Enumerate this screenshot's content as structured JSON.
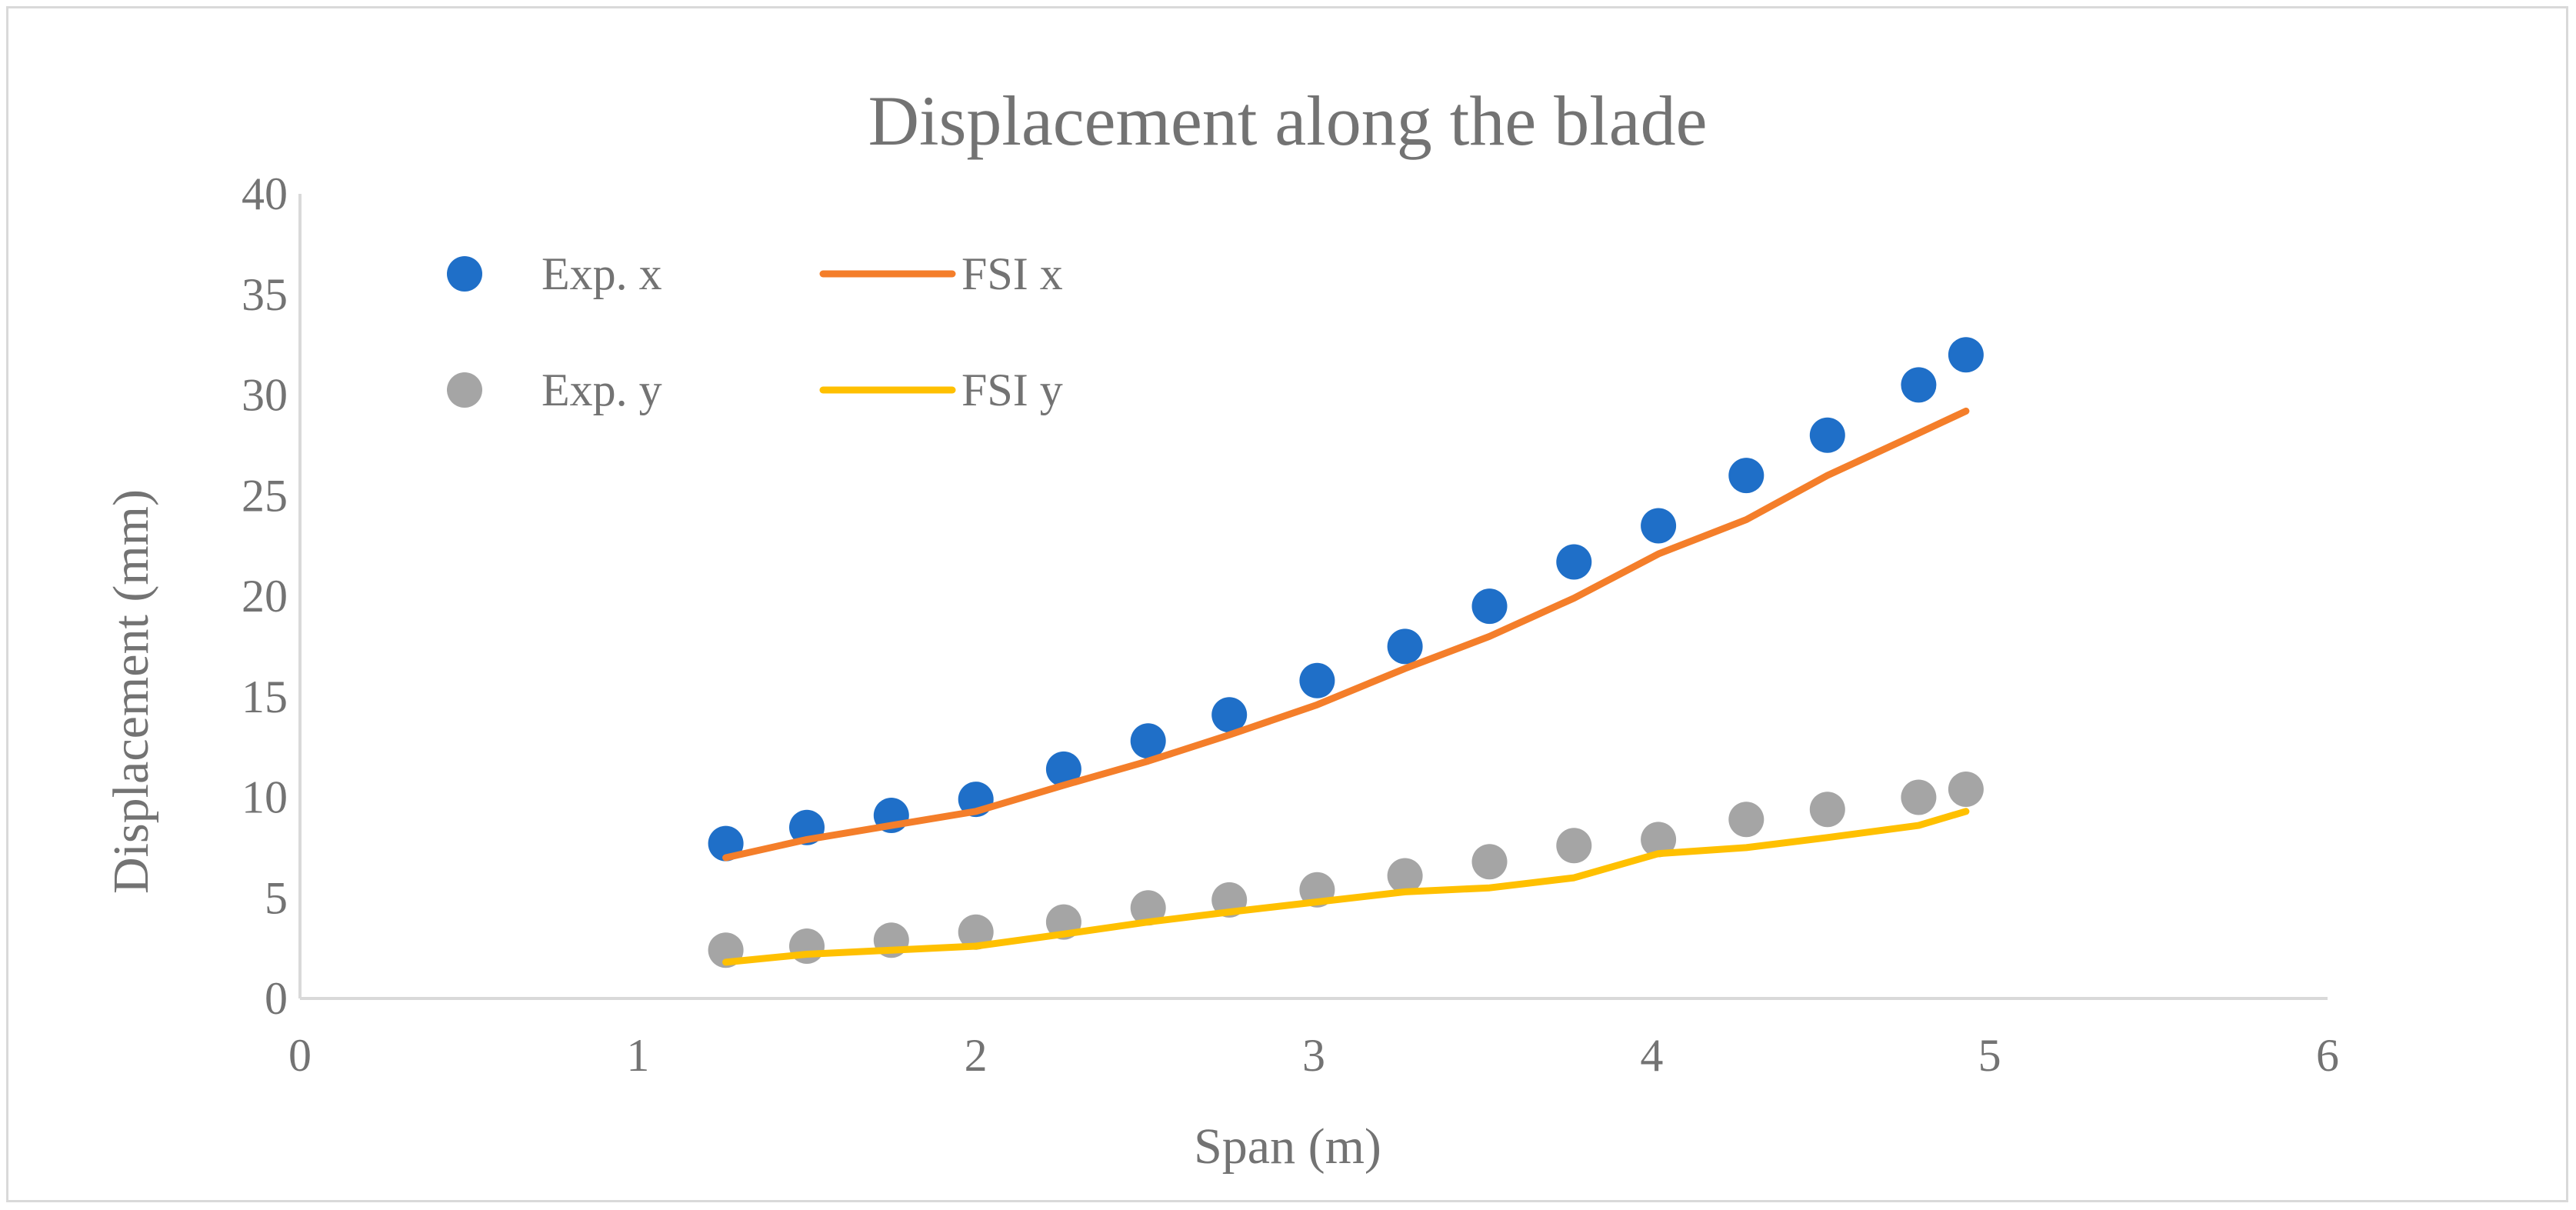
{
  "chart_data": {
    "type": "scatter",
    "title": "Displacement along the blade",
    "xlabel": "Span (m)",
    "ylabel": "Displacement (mm)",
    "xlim": [
      0,
      6
    ],
    "ylim": [
      0,
      40
    ],
    "x_ticks": [
      0,
      1,
      2,
      3,
      4,
      5,
      6
    ],
    "y_ticks": [
      0,
      5,
      10,
      15,
      20,
      25,
      30,
      35,
      40
    ],
    "grid": false,
    "legend_position": "top-left",
    "series": [
      {
        "name": "Exp. x",
        "kind": "scatter",
        "color": "#1f6fc8",
        "x": [
          1.26,
          1.5,
          1.75,
          2.0,
          2.26,
          2.51,
          2.75,
          3.01,
          3.27,
          3.52,
          3.77,
          4.02,
          4.28,
          4.52,
          4.79,
          4.93
        ],
        "y": [
          7.7,
          8.5,
          9.1,
          9.9,
          11.4,
          12.8,
          14.1,
          15.8,
          17.5,
          19.5,
          21.7,
          23.5,
          26.0,
          28.0,
          30.5,
          32.0
        ]
      },
      {
        "name": "FSI x",
        "kind": "line",
        "color": "#f47e2a",
        "x": [
          1.26,
          1.5,
          1.75,
          2.0,
          2.26,
          2.51,
          2.75,
          3.01,
          3.27,
          3.52,
          3.77,
          4.02,
          4.28,
          4.52,
          4.79,
          4.93
        ],
        "y": [
          7.0,
          7.9,
          8.6,
          9.3,
          10.6,
          11.8,
          13.1,
          14.6,
          16.4,
          18.0,
          19.9,
          22.1,
          23.8,
          26.0,
          28.1,
          29.2
        ]
      },
      {
        "name": "Exp. y",
        "kind": "scatter",
        "color": "#a5a5a5",
        "x": [
          1.26,
          1.5,
          1.75,
          2.0,
          2.26,
          2.51,
          2.75,
          3.01,
          3.27,
          3.52,
          3.77,
          4.02,
          4.28,
          4.52,
          4.79,
          4.93
        ],
        "y": [
          2.4,
          2.6,
          2.9,
          3.3,
          3.8,
          4.5,
          4.9,
          5.4,
          6.1,
          6.8,
          7.6,
          7.9,
          8.9,
          9.4,
          10.0,
          10.4
        ]
      },
      {
        "name": "FSI y",
        "kind": "line",
        "color": "#ffc000",
        "x": [
          1.26,
          1.5,
          1.75,
          2.0,
          2.26,
          2.51,
          2.75,
          3.01,
          3.27,
          3.52,
          3.77,
          4.02,
          4.28,
          4.52,
          4.79,
          4.93
        ],
        "y": [
          1.8,
          2.2,
          2.4,
          2.6,
          3.2,
          3.8,
          4.3,
          4.8,
          5.3,
          5.5,
          6.0,
          7.2,
          7.5,
          8.0,
          8.6,
          9.3
        ]
      }
    ]
  }
}
